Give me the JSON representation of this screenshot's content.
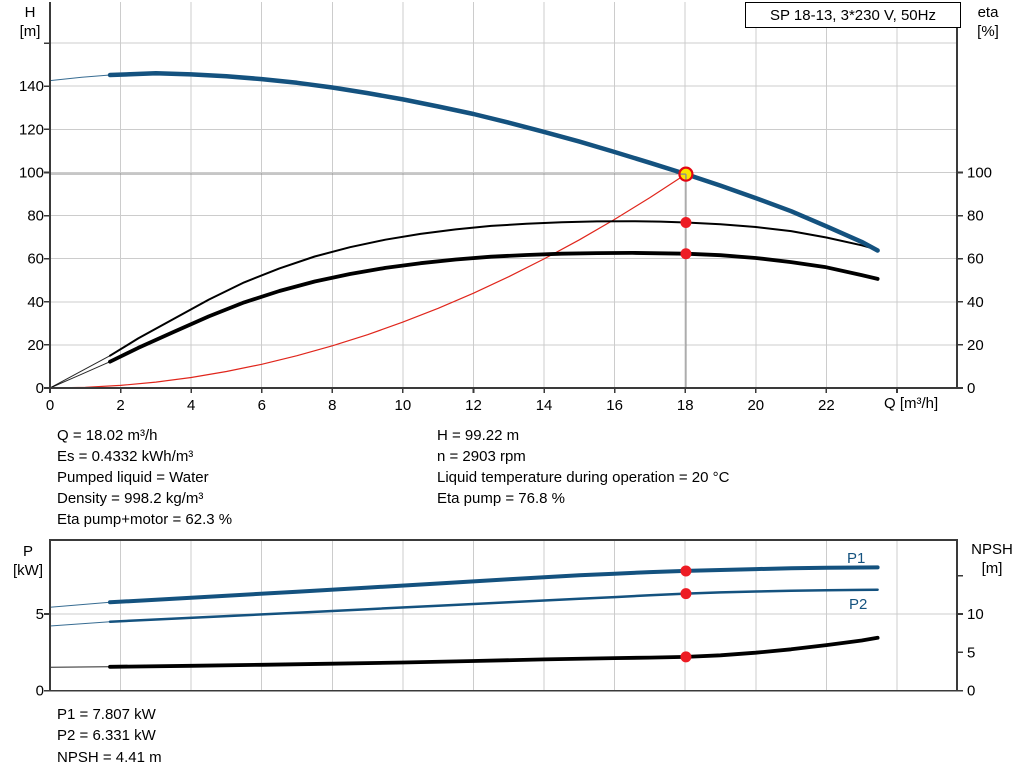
{
  "title_box": {
    "label": "SP 18-13, 3*230 V, 50Hz"
  },
  "info": {
    "left": [
      "Q = 18.02 m³/h",
      "Es = 0.4332 kWh/m³",
      "Pumped liquid = Water",
      "Density = 998.2 kg/m³",
      "Eta pump+motor = 62.3 %"
    ],
    "right": [
      "H = 99.22 m",
      "n = 2903 rpm",
      "Liquid temperature during operation = 20 °C",
      "Eta pump = 76.8 %"
    ],
    "bottom": [
      "P1 = 7.807 kW",
      "P2 = 6.331 kW",
      "NPSH = 4.41 m"
    ]
  },
  "colors": {
    "curve_blue": "#14527f",
    "curve_black": "#000000",
    "system_red": "#e0261c",
    "marker_red": "#ed1c24",
    "marker_yellow": "#f9e700",
    "marker_ring": "#e30613"
  },
  "chart_data": [
    {
      "id": "qh-eta-chart",
      "type": "line",
      "x": {
        "label": "Q [m³/h]",
        "tick_labels": [
          0,
          2,
          4,
          6,
          8,
          10,
          12,
          14,
          16,
          18,
          20,
          22
        ],
        "extra_ticks": [
          24
        ],
        "range": [
          0,
          25.7
        ]
      },
      "y_left": {
        "title": "H",
        "unit": "[m]",
        "ticks": [
          0,
          20,
          40,
          60,
          80,
          100,
          120,
          140
        ],
        "extra_ticks": [
          160
        ],
        "range": [
          0,
          179
        ]
      },
      "y_right": {
        "title": "eta",
        "unit": "[%]",
        "ticks": [
          0,
          20,
          40,
          60,
          80,
          100
        ],
        "extra_ticks": [],
        "range": [
          0,
          179
        ]
      },
      "series": [
        {
          "name": "system-curve",
          "axis": "left",
          "color": "#e0261c",
          "width": 1.2,
          "points": [
            [
              0,
              0
            ],
            [
              1,
              0.31
            ],
            [
              2,
              1.22
            ],
            [
              3,
              2.75
            ],
            [
              4,
              4.89
            ],
            [
              5,
              7.64
            ],
            [
              6,
              11.0
            ],
            [
              7,
              14.97
            ],
            [
              8,
              19.56
            ],
            [
              9,
              24.75
            ],
            [
              10,
              30.56
            ],
            [
              11,
              36.97
            ],
            [
              12,
              44.0
            ],
            [
              13,
              51.64
            ],
            [
              14,
              59.89
            ],
            [
              15,
              68.76
            ],
            [
              16,
              78.23
            ],
            [
              17,
              88.32
            ],
            [
              18.02,
              99.22
            ]
          ]
        },
        {
          "name": "eta-pump-plus-motor",
          "axis": "right",
          "color": "#000000",
          "width": 3.8,
          "thin_until": 1.7,
          "points": [
            [
              0,
              0
            ],
            [
              0.85,
              6.1
            ],
            [
              1.7,
              12.2
            ],
            [
              2.5,
              18.6
            ],
            [
              3.5,
              26
            ],
            [
              4.5,
              33.2
            ],
            [
              5.5,
              39.7
            ],
            [
              6.5,
              45
            ],
            [
              7.5,
              49.4
            ],
            [
              8.5,
              52.9
            ],
            [
              9.5,
              55.7
            ],
            [
              10.5,
              57.9
            ],
            [
              11.5,
              59.6
            ],
            [
              12.5,
              60.9
            ],
            [
              13.5,
              61.7
            ],
            [
              14.5,
              62.3
            ],
            [
              15.5,
              62.6
            ],
            [
              16.5,
              62.7
            ],
            [
              17.3,
              62.5
            ],
            [
              18.02,
              62.3
            ],
            [
              19,
              61.6
            ],
            [
              20,
              60.3
            ],
            [
              21,
              58.4
            ],
            [
              22,
              56.0
            ],
            [
              23,
              52.4
            ],
            [
              23.45,
              50.6
            ]
          ]
        },
        {
          "name": "eta-pump",
          "axis": "right",
          "color": "#000000",
          "width": 2,
          "thin_until": 1.7,
          "points": [
            [
              0,
              0
            ],
            [
              0.85,
              7.5
            ],
            [
              1.7,
              15
            ],
            [
              2.5,
              23
            ],
            [
              3.5,
              32
            ],
            [
              4.5,
              41
            ],
            [
              5.5,
              49
            ],
            [
              6.5,
              55.5
            ],
            [
              7.5,
              61
            ],
            [
              8.5,
              65.3
            ],
            [
              9.5,
              68.8
            ],
            [
              10.5,
              71.5
            ],
            [
              11.5,
              73.6
            ],
            [
              12.5,
              75.2
            ],
            [
              13.5,
              76.2
            ],
            [
              14.5,
              76.9
            ],
            [
              15.5,
              77.3
            ],
            [
              16.5,
              77.4
            ],
            [
              17.3,
              77.2
            ],
            [
              18.02,
              76.8
            ],
            [
              19,
              76
            ],
            [
              20,
              74.7
            ],
            [
              21,
              72.8
            ],
            [
              22,
              69.8
            ],
            [
              23,
              66.2
            ],
            [
              23.45,
              64.2
            ]
          ]
        },
        {
          "name": "H-head",
          "axis": "left",
          "color": "#14527f",
          "width": 4.5,
          "thin_until": 1.7,
          "points": [
            [
              0,
              142.6
            ],
            [
              0.9,
              144.2
            ],
            [
              1.7,
              145.2
            ],
            [
              3,
              146
            ],
            [
              4,
              145.5
            ],
            [
              5,
              144.6
            ],
            [
              6,
              143.3
            ],
            [
              7,
              141.6
            ],
            [
              8,
              139.4
            ],
            [
              9,
              136.8
            ],
            [
              10,
              133.9
            ],
            [
              11,
              130.6
            ],
            [
              12,
              127.1
            ],
            [
              13,
              123.1
            ],
            [
              14,
              118.8
            ],
            [
              15,
              114.3
            ],
            [
              16,
              109.5
            ],
            [
              17,
              104.5
            ],
            [
              18.02,
              99.22
            ],
            [
              19,
              93.9
            ],
            [
              20,
              88.1
            ],
            [
              21,
              82
            ],
            [
              22,
              75
            ],
            [
              23,
              67.8
            ],
            [
              23.45,
              63.8
            ]
          ]
        }
      ],
      "markers": [
        {
          "name": "duty-point",
          "q": 18.02,
          "value": 99.22,
          "axis": "left",
          "style": "yellow"
        },
        {
          "name": "eta-pump-point",
          "q": 18.02,
          "value": 76.8,
          "axis": "right",
          "style": "red"
        },
        {
          "name": "eta-pump-motor-point",
          "q": 18.02,
          "value": 62.3,
          "axis": "right",
          "style": "red"
        }
      ],
      "crosshair": {
        "q": 18.02,
        "h": 99.22
      }
    },
    {
      "id": "power-npsh-chart",
      "type": "line",
      "x": {
        "label": "",
        "tick_labels": [],
        "extra_ticks": [
          2,
          4,
          6,
          8,
          10,
          12,
          14,
          16,
          18,
          20,
          22,
          24
        ],
        "range": [
          0,
          25.7
        ]
      },
      "y_left": {
        "title": "P",
        "unit": "[kW]",
        "ticks": [
          0,
          5
        ],
        "extra_ticks": [],
        "range": [
          0,
          9.8
        ]
      },
      "y_right": {
        "title": "NPSH",
        "unit": "[m]",
        "ticks": [
          0,
          5,
          10
        ],
        "extra_ticks": [
          15
        ],
        "range": [
          0,
          19.6
        ]
      },
      "grid_y_left": [
        5
      ],
      "series": [
        {
          "name": "P1",
          "axis": "left",
          "color": "#14527f",
          "width": 4,
          "thin_until": 1.7,
          "points": [
            [
              0,
              5.44
            ],
            [
              1.7,
              5.76
            ],
            [
              3,
              5.93
            ],
            [
              5,
              6.19
            ],
            [
              7,
              6.45
            ],
            [
              9,
              6.72
            ],
            [
              11,
              6.99
            ],
            [
              13,
              7.26
            ],
            [
              15,
              7.52
            ],
            [
              16,
              7.63
            ],
            [
              17,
              7.73
            ],
            [
              18.02,
              7.807
            ],
            [
              19,
              7.87
            ],
            [
              20,
              7.93
            ],
            [
              21,
              7.98
            ],
            [
              22,
              8.01
            ],
            [
              23,
              8.03
            ],
            [
              23.45,
              8.04
            ]
          ]
        },
        {
          "name": "P2",
          "axis": "left",
          "color": "#14527f",
          "width": 2.5,
          "thin_until": 1.7,
          "points": [
            [
              0,
              4.22
            ],
            [
              1.7,
              4.5
            ],
            [
              3,
              4.64
            ],
            [
              5,
              4.86
            ],
            [
              7,
              5.08
            ],
            [
              9,
              5.31
            ],
            [
              11,
              5.54
            ],
            [
              13,
              5.77
            ],
            [
              15,
              5.99
            ],
            [
              16,
              6.1
            ],
            [
              17,
              6.22
            ],
            [
              18.02,
              6.331
            ],
            [
              19,
              6.41
            ],
            [
              20,
              6.47
            ],
            [
              21,
              6.52
            ],
            [
              22,
              6.55
            ],
            [
              23,
              6.57
            ],
            [
              23.45,
              6.58
            ]
          ]
        },
        {
          "name": "NPSH",
          "axis": "right",
          "color": "#000000",
          "width": 3.8,
          "thin_until": 1.7,
          "points": [
            [
              0,
              3.05
            ],
            [
              1.7,
              3.12
            ],
            [
              4,
              3.25
            ],
            [
              6,
              3.38
            ],
            [
              8,
              3.52
            ],
            [
              10,
              3.68
            ],
            [
              12,
              3.87
            ],
            [
              14,
              4.08
            ],
            [
              16,
              4.25
            ],
            [
              17,
              4.32
            ],
            [
              18.02,
              4.41
            ],
            [
              19,
              4.62
            ],
            [
              20,
              4.95
            ],
            [
              21,
              5.4
            ],
            [
              22,
              5.95
            ],
            [
              23,
              6.55
            ],
            [
              23.45,
              6.9
            ]
          ]
        }
      ],
      "markers": [
        {
          "name": "p1-point",
          "q": 18.02,
          "value": 7.807,
          "axis": "left",
          "style": "red"
        },
        {
          "name": "p2-point",
          "q": 18.02,
          "value": 6.331,
          "axis": "left",
          "style": "red"
        },
        {
          "name": "npsh-point",
          "q": 18.02,
          "value": 4.41,
          "axis": "right",
          "style": "red"
        }
      ]
    }
  ]
}
